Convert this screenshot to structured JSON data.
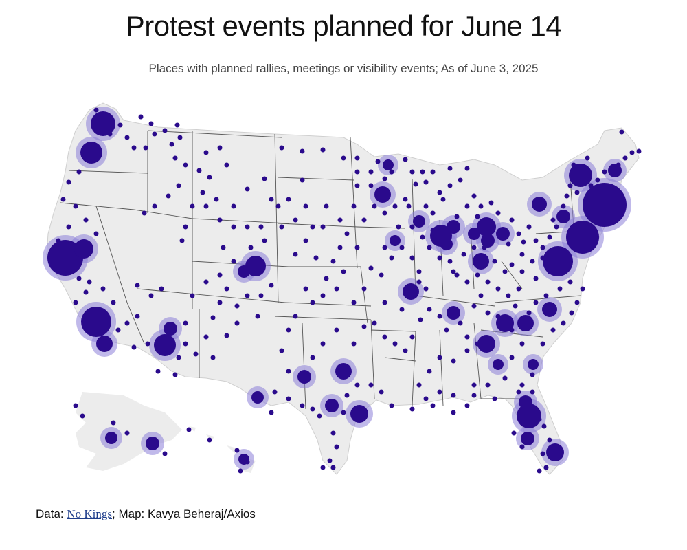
{
  "header": {
    "title": "Protest events planned for June 14",
    "subtitle": "Places with planned rallies, meetings or visibility events; As of June 3, 2025"
  },
  "footer": {
    "data_prefix": "Data: ",
    "source_link": "No Kings",
    "map_credit": "; Map: Kavya Beheraj/Axios"
  },
  "colors": {
    "dot": "#2a0a8c",
    "halo": "#8c7fd9",
    "land": "#ececec",
    "border": "#555555"
  }
}
